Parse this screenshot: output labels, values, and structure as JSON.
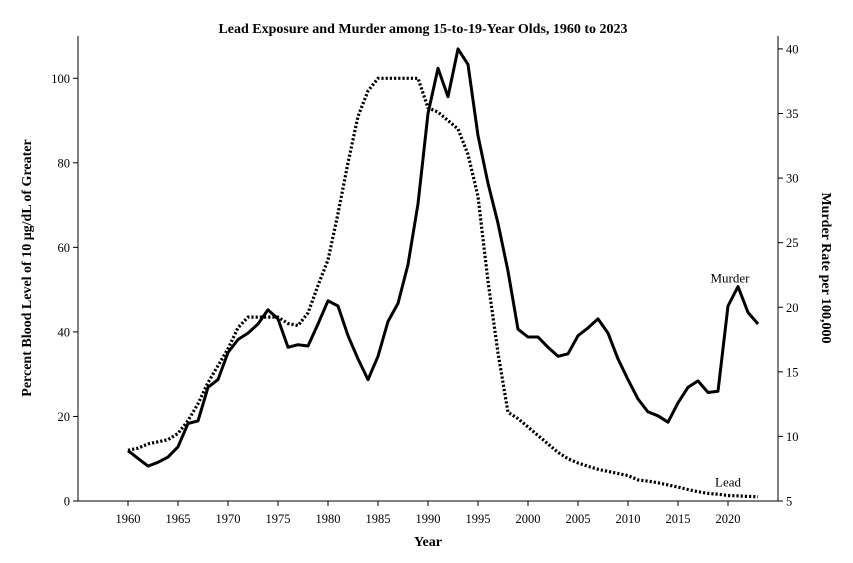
{
  "chart_data": {
    "type": "line",
    "title": "Lead Exposure and Murder among 15-to-19-Year Olds, 1960 to 2023",
    "xlabel": "Year",
    "ylabel_left": "Percent Blood Level of 10 μg/dL of Greater",
    "ylabel_right": "Murder Rate per 100,000",
    "xlim": [
      1955,
      2025
    ],
    "ylim_left": [
      0,
      110
    ],
    "ylim_right": [
      5,
      41
    ],
    "x_ticks": [
      1960,
      1965,
      1970,
      1975,
      1980,
      1985,
      1990,
      1995,
      2000,
      2005,
      2010,
      2015,
      2020
    ],
    "y_ticks_left": [
      0,
      20,
      40,
      60,
      80,
      100
    ],
    "y_ticks_right": [
      5,
      10,
      15,
      20,
      25,
      30,
      35,
      40
    ],
    "grid": false,
    "series": [
      {
        "name": "Lead",
        "axis": "left",
        "style": "dotted",
        "color": "#000000",
        "x": [
          1960,
          1961,
          1962,
          1963,
          1964,
          1965,
          1966,
          1967,
          1968,
          1969,
          1970,
          1971,
          1972,
          1973,
          1974,
          1975,
          1976,
          1977,
          1978,
          1979,
          1980,
          1981,
          1982,
          1983,
          1984,
          1985,
          1986,
          1987,
          1988,
          1989,
          1990,
          1991,
          1992,
          1993,
          1994,
          1995,
          1996,
          1997,
          1998,
          1999,
          2000,
          2001,
          2002,
          2003,
          2004,
          2005,
          2006,
          2007,
          2008,
          2009,
          2010,
          2011,
          2012,
          2013,
          2014,
          2015,
          2016,
          2017,
          2018,
          2019,
          2020,
          2021,
          2022,
          2023
        ],
        "values": [
          12,
          12.5,
          13.5,
          14,
          14.5,
          16,
          19,
          23,
          28,
          32,
          36,
          41,
          43.5,
          43.5,
          43.5,
          43.5,
          42,
          41.5,
          44.5,
          51,
          57,
          68,
          80,
          91,
          97,
          100,
          100,
          100,
          100,
          100,
          93,
          92,
          90,
          88,
          82,
          72,
          52,
          35,
          21,
          19.5,
          17.5,
          15.5,
          13.5,
          11.5,
          10,
          9,
          8.2,
          7.5,
          7,
          6.5,
          6,
          5,
          4.7,
          4.3,
          3.8,
          3.3,
          2.7,
          2.2,
          1.8,
          1.6,
          1.3,
          1.2,
          1.1,
          1
        ]
      },
      {
        "name": "Murder",
        "axis": "right",
        "style": "solid",
        "color": "#000000",
        "x": [
          1960,
          1961,
          1962,
          1963,
          1964,
          1965,
          1966,
          1967,
          1968,
          1969,
          1970,
          1971,
          1972,
          1973,
          1974,
          1975,
          1976,
          1977,
          1978,
          1979,
          1980,
          1981,
          1982,
          1983,
          1984,
          1985,
          1986,
          1987,
          1988,
          1989,
          1990,
          1991,
          1992,
          1993,
          1994,
          1995,
          1996,
          1997,
          1998,
          1999,
          2000,
          2001,
          2002,
          2003,
          2004,
          2005,
          2006,
          2007,
          2008,
          2009,
          2010,
          2011,
          2012,
          2013,
          2014,
          2015,
          2016,
          2017,
          2018,
          2019,
          2020,
          2021,
          2022,
          2023
        ],
        "values": [
          8.9,
          8.3,
          7.7,
          8,
          8.4,
          9.2,
          11,
          11.2,
          13.8,
          14.4,
          16.5,
          17.5,
          18,
          18.7,
          19.8,
          19.1,
          16.9,
          17.1,
          17,
          18.7,
          20.5,
          20.1,
          17.8,
          16,
          14.4,
          16.2,
          18.9,
          20.3,
          23.3,
          28,
          35,
          38.5,
          36.3,
          40,
          38.8,
          33.3,
          29.6,
          26.5,
          22.8,
          18.3,
          17.7,
          17.7,
          16.9,
          16.2,
          16.4,
          17.8,
          18.4,
          19.1,
          18,
          16,
          14.4,
          12.9,
          11.9,
          11.6,
          11.1,
          12.6,
          13.8,
          14.3,
          13.4,
          13.5,
          20.1,
          21.6,
          19.6,
          18.7
        ]
      }
    ],
    "annotations": [
      {
        "text": "Murder",
        "x": 2020.2,
        "y": 21.9,
        "axis": "right"
      },
      {
        "text": "Lead",
        "x": 2020,
        "y": 3.4,
        "axis": "left"
      }
    ]
  }
}
